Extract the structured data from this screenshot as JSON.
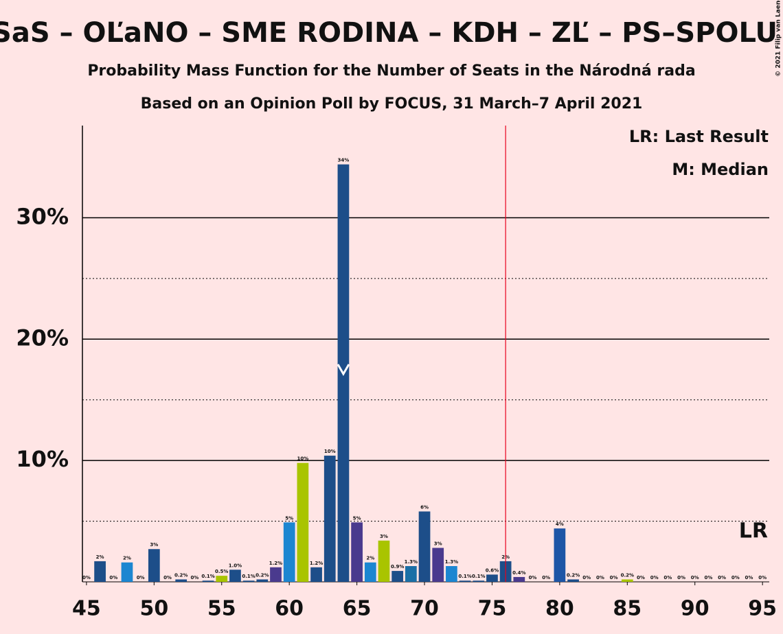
{
  "chart_data": {
    "type": "bar",
    "title": "SaS – OĽaNO – SME RODINA – KDH – ZĽ – PS–SPOLU",
    "subtitle": "Probability Mass Function for the Number of Seats in the Národná rada",
    "subtitle2": "Based on an Opinion Poll by FOCUS, 31 March–7 April 2021",
    "legend_lines": [
      "LR: Last Result",
      "M: Median"
    ],
    "copyright": "© 2021 Filip van Laenen",
    "lr_label": "LR",
    "median": 64,
    "last_result": 76,
    "last_result_color": "#e8001c",
    "x": [
      45,
      46,
      47,
      48,
      49,
      50,
      51,
      52,
      53,
      54,
      55,
      56,
      57,
      58,
      59,
      60,
      61,
      62,
      63,
      64,
      65,
      66,
      67,
      68,
      69,
      70,
      71,
      72,
      73,
      74,
      75,
      76,
      77,
      78,
      79,
      80,
      81,
      82,
      83,
      84,
      85,
      86,
      87,
      88,
      89,
      90,
      91,
      92,
      93,
      94,
      95
    ],
    "values": [
      0,
      1.7,
      0,
      1.6,
      0,
      2.7,
      0,
      0.2,
      0,
      0.1,
      0.5,
      1.0,
      0.1,
      0.2,
      1.2,
      4.9,
      9.8,
      1.2,
      10.4,
      34.4,
      4.9,
      1.6,
      3.4,
      0.9,
      1.3,
      5.8,
      2.8,
      1.3,
      0.1,
      0.1,
      0.6,
      1.7,
      0.4,
      0,
      0,
      4.4,
      0.2,
      0,
      0,
      0,
      0.2,
      0,
      0,
      0,
      0,
      0,
      0,
      0,
      0,
      0,
      0
    ],
    "value_labels": [
      "0%",
      "2%",
      "0%",
      "2%",
      "0%",
      "3%",
      "0%",
      "0.2%",
      "0%",
      "0.1%",
      "0.5%",
      "1.0%",
      "0.1%",
      "0.2%",
      "1.2%",
      "5%",
      "10%",
      "1.2%",
      "10%",
      "34%",
      "5%",
      "2%",
      "3%",
      "0.9%",
      "1.3%",
      "6%",
      "3%",
      "1.3%",
      "0.1%",
      "0.1%",
      "0.6%",
      "2%",
      "0.4%",
      "0%",
      "0%",
      "4%",
      "0.2%",
      "0%",
      "0%",
      "0%",
      "0.2%",
      "0%",
      "0%",
      "0%",
      "0%",
      "0%",
      "0%",
      "0%",
      "0%",
      "0%",
      "0%"
    ],
    "colors": [
      "#1d4e89",
      "#1d4e89",
      "#1d4e89",
      "#1c86d1",
      "#1d4e89",
      "#1d4e89",
      "#1d4e89",
      "#1d4e89",
      "#1d4e89",
      "#1d4e89",
      "#a9c400",
      "#1d4e89",
      "#1d4e89",
      "#1d4e89",
      "#4a3a8e",
      "#1c86d1",
      "#a9c400",
      "#1d4e89",
      "#1d4e89",
      "#1d4e89",
      "#4a3a8e",
      "#1c86d1",
      "#a9c400",
      "#1d4e89",
      "#1b6fa6",
      "#1d4e89",
      "#4a3a8e",
      "#1c86d1",
      "#1d4e89",
      "#1d4e89",
      "#1d4e89",
      "#1d4e89",
      "#4a3a8e",
      "#1d4e89",
      "#1d4e89",
      "#1d55a6",
      "#1d4e89",
      "#1d4e89",
      "#1d4e89",
      "#1d4e89",
      "#a9c400",
      "#1d4e89",
      "#1d4e89",
      "#1d4e89",
      "#1d4e89",
      "#1d4e89",
      "#1d4e89",
      "#1d4e89",
      "#1d4e89",
      "#1d4e89",
      "#1d4e89"
    ],
    "xlim": [
      44.7,
      95.5
    ],
    "xticks": [
      45,
      50,
      55,
      60,
      65,
      70,
      75,
      80,
      85,
      90,
      95
    ],
    "ylim": [
      0,
      37.6
    ],
    "yticks": [
      {
        "value": 10,
        "label": "10%"
      },
      {
        "value": 20,
        "label": "20%"
      },
      {
        "value": 30,
        "label": "30%"
      }
    ],
    "minor_yticks": [
      5,
      15,
      25
    ]
  }
}
